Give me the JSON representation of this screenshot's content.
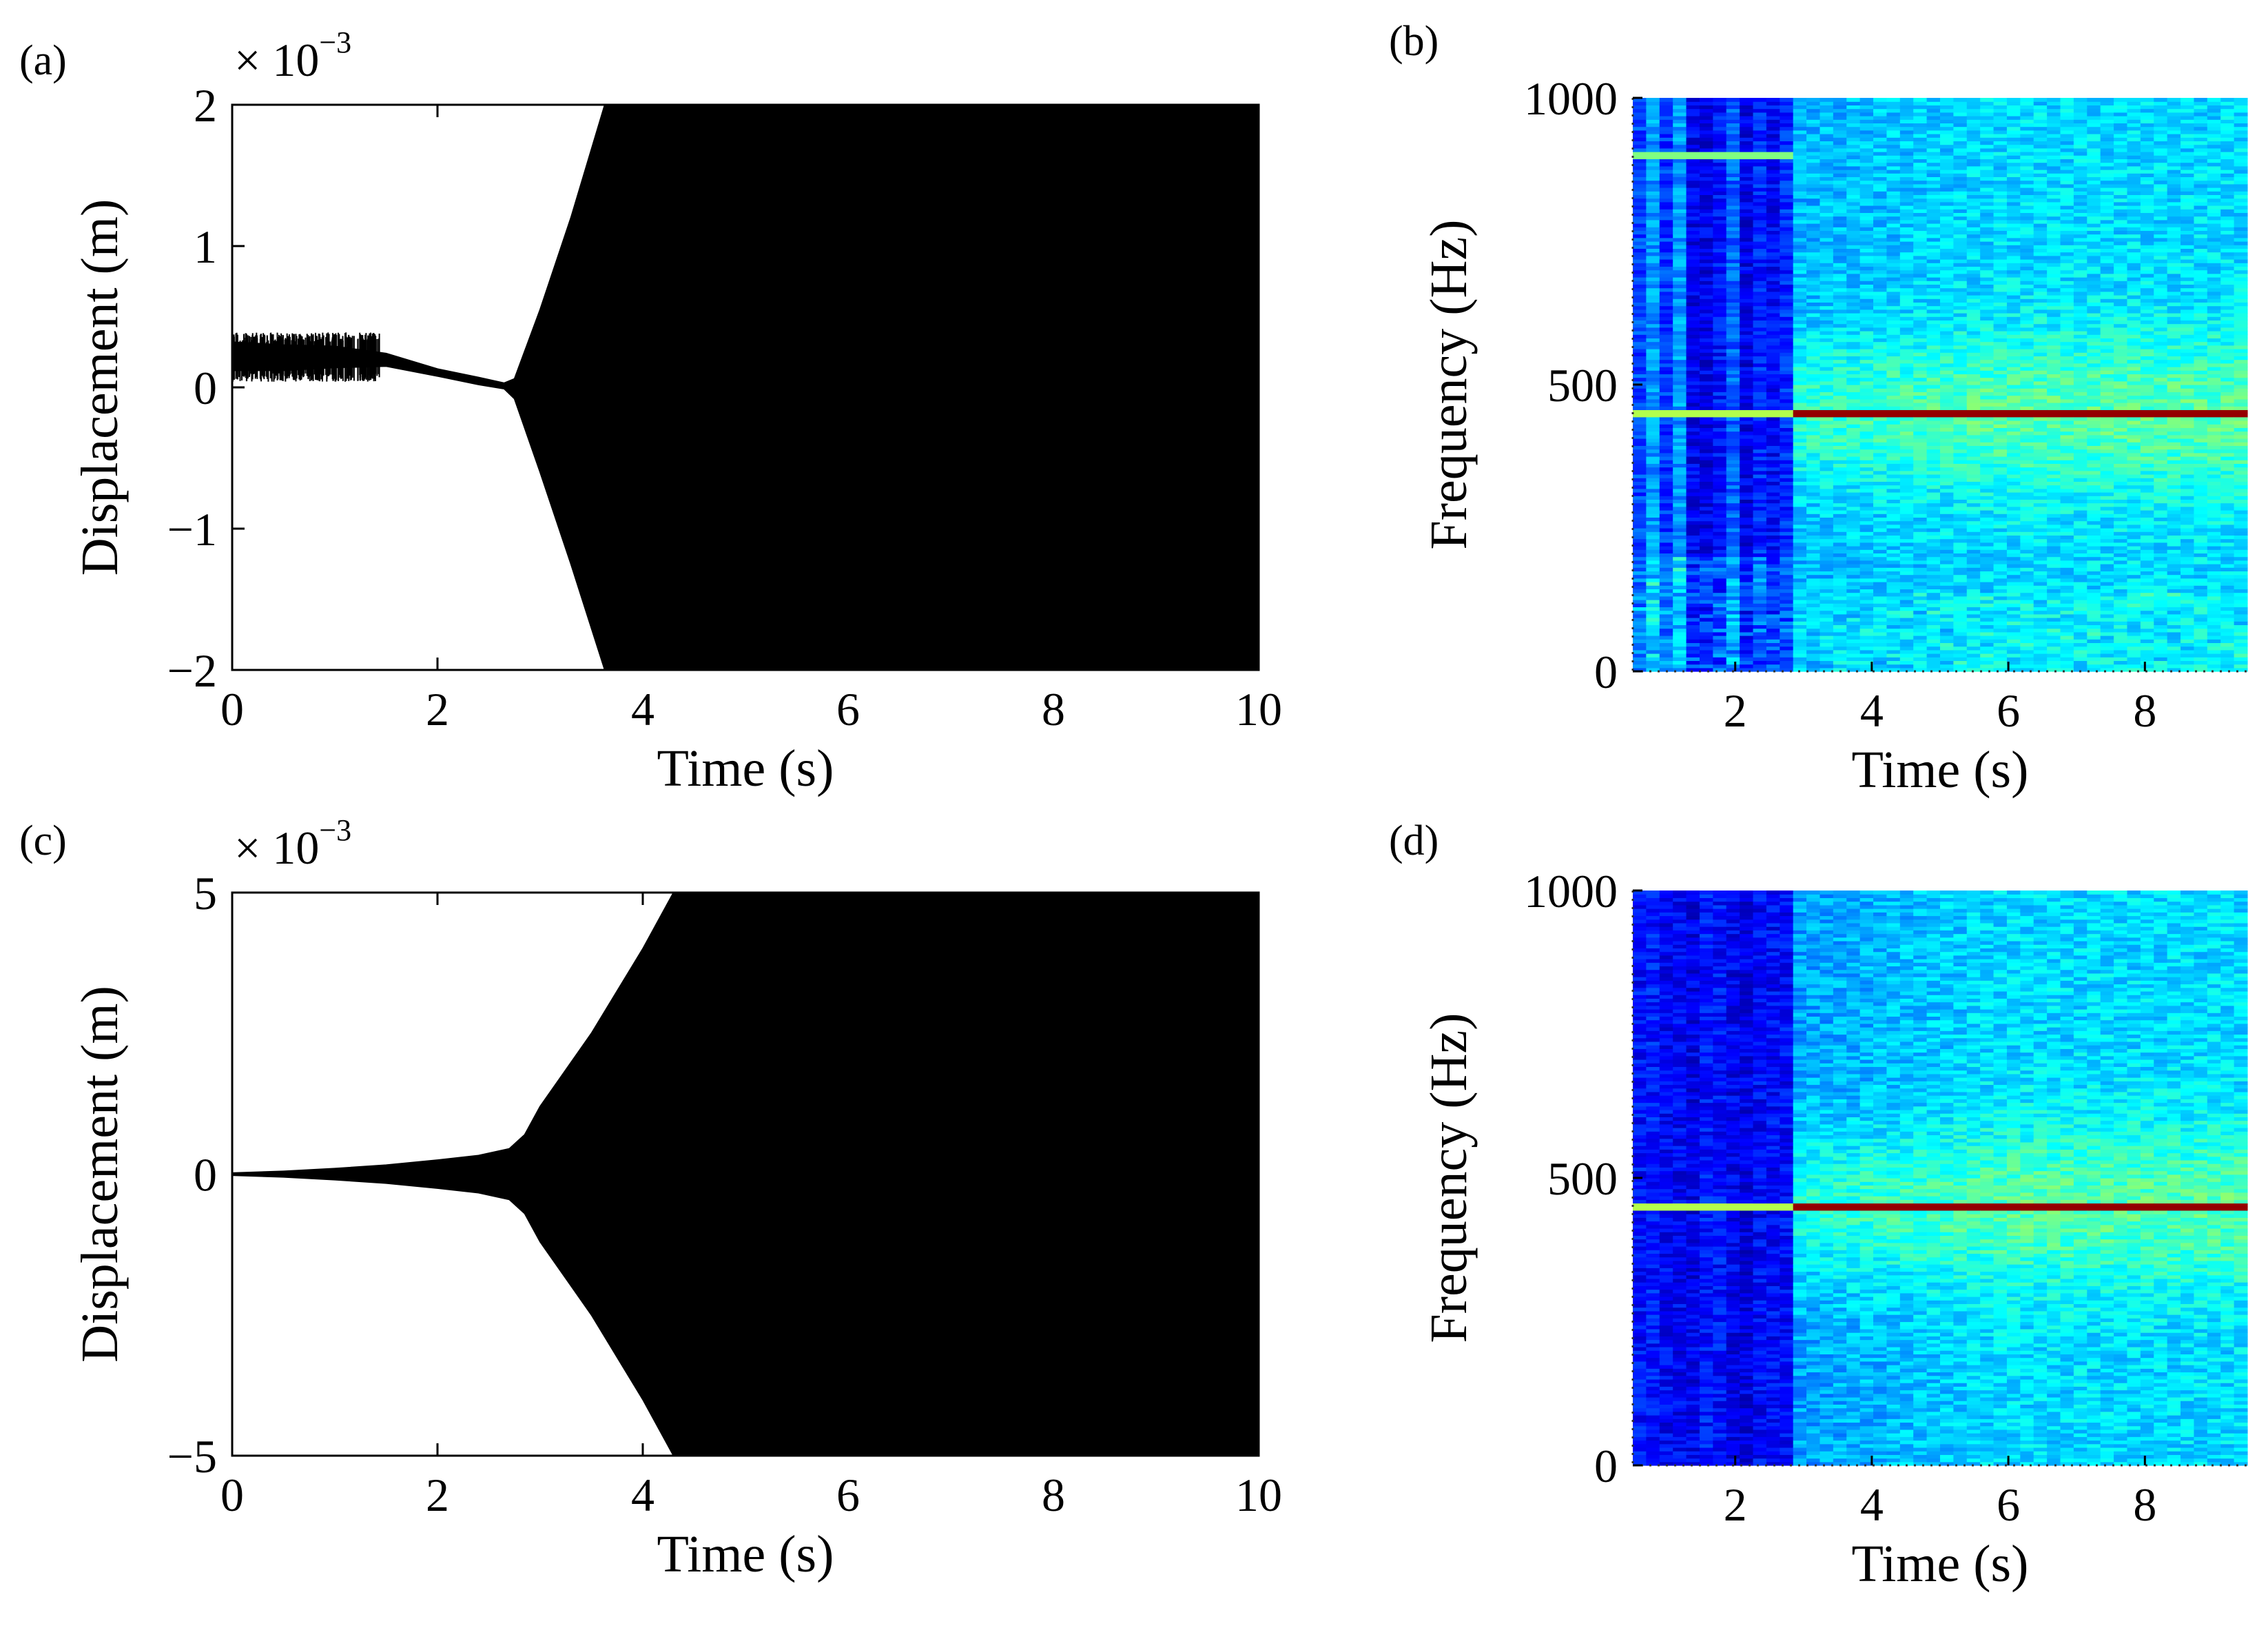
{
  "chart_data": [
    {
      "panel": "(a)",
      "type": "line",
      "title": "",
      "xlabel": "Time (s)",
      "ylabel": "Displacement (m)",
      "xlim": [
        0,
        10
      ],
      "ylim": [
        -2,
        2
      ],
      "xticks": [
        0,
        2,
        4,
        6,
        8,
        10
      ],
      "yticks": [
        -2,
        -1,
        0,
        1,
        2
      ],
      "ytick_labels": [
        "−2",
        "−1",
        "0",
        "1",
        "2"
      ],
      "y_scale_label": "× 10",
      "y_scale_exponent": "−3",
      "grid": false,
      "series": [
        {
          "name": "upper envelope",
          "x": [
            0,
            0.5,
            1.0,
            1.5,
            2.0,
            2.4,
            2.65,
            2.75,
            3.0,
            3.3,
            3.63,
            10
          ],
          "y": [
            0.32,
            0.3,
            0.29,
            0.24,
            0.13,
            0.07,
            0.03,
            0.06,
            0.55,
            1.2,
            2.0,
            2.0
          ]
        },
        {
          "name": "lower envelope",
          "x": [
            0,
            0.5,
            1.0,
            1.5,
            2.0,
            2.4,
            2.65,
            2.75,
            3.0,
            3.3,
            3.63,
            10
          ],
          "y": [
            0.12,
            0.12,
            0.14,
            0.15,
            0.08,
            0.02,
            -0.01,
            -0.08,
            -0.6,
            -1.25,
            -2.0,
            -2.0
          ]
        }
      ]
    },
    {
      "panel": "(b)",
      "type": "heatmap",
      "title": "",
      "xlabel": "Time (s)",
      "ylabel": "Frequency (Hz)",
      "xlim": [
        0.5,
        9.5
      ],
      "ylim": [
        0,
        1000
      ],
      "xticks": [
        2,
        4,
        6,
        8
      ],
      "yticks": [
        0,
        500,
        1000
      ],
      "colormap": "jet",
      "features": [
        {
          "name": "dominant line",
          "frequency_hz": 450,
          "t_start": 0.5,
          "t_end": 9.5
        },
        {
          "name": "weak line",
          "frequency_hz": 900,
          "t_start": 0.5,
          "t_end": 2.9
        }
      ]
    },
    {
      "panel": "(c)",
      "type": "line",
      "title": "",
      "xlabel": "Time (s)",
      "ylabel": "Displacement (m)",
      "xlim": [
        0,
        10
      ],
      "ylim": [
        -5,
        5
      ],
      "xticks": [
        0,
        2,
        4,
        6,
        8,
        10
      ],
      "yticks": [
        -5,
        0,
        5
      ],
      "ytick_labels": [
        "−5",
        "0",
        "5"
      ],
      "y_scale_label": "× 10",
      "y_scale_exponent": "−3",
      "grid": false,
      "series": [
        {
          "name": "upper envelope",
          "x": [
            0,
            0.5,
            1.0,
            1.5,
            2.0,
            2.4,
            2.7,
            2.85,
            3.0,
            3.5,
            4.0,
            4.3,
            10
          ],
          "y": [
            0.02,
            0.05,
            0.1,
            0.16,
            0.25,
            0.33,
            0.45,
            0.7,
            1.2,
            2.5,
            4.0,
            5.0,
            5.0
          ]
        },
        {
          "name": "lower envelope",
          "x": [
            0,
            0.5,
            1.0,
            1.5,
            2.0,
            2.4,
            2.7,
            2.85,
            3.0,
            3.5,
            4.0,
            4.3,
            10
          ],
          "y": [
            -0.02,
            -0.05,
            -0.1,
            -0.16,
            -0.25,
            -0.33,
            -0.45,
            -0.7,
            -1.2,
            -2.5,
            -4.0,
            -5.0,
            -5.0
          ]
        }
      ]
    },
    {
      "panel": "(d)",
      "type": "heatmap",
      "title": "",
      "xlabel": "Time (s)",
      "ylabel": "Frequency (Hz)",
      "xlim": [
        0.5,
        9.5
      ],
      "ylim": [
        0,
        1000
      ],
      "xticks": [
        2,
        4,
        6,
        8
      ],
      "yticks": [
        0,
        500,
        1000
      ],
      "colormap": "jet",
      "features": [
        {
          "name": "dominant line",
          "frequency_hz": 450,
          "t_start": 0.5,
          "t_end": 9.5
        }
      ]
    }
  ]
}
